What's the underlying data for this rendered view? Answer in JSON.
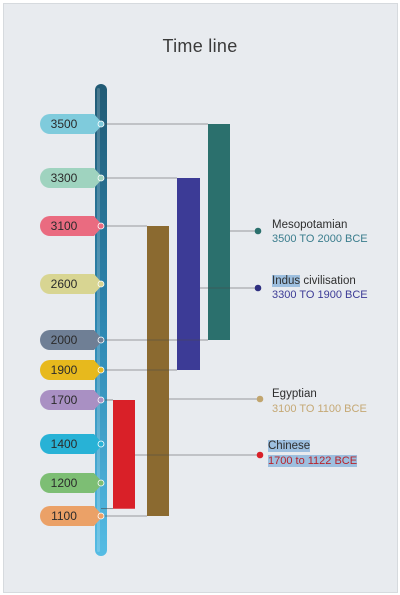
{
  "title": "Time line",
  "years": [
    {
      "label": "3500",
      "color": "#7fcbdc"
    },
    {
      "label": "3300",
      "color": "#9fd3bf"
    },
    {
      "label": "3100",
      "color": "#ea6b80"
    },
    {
      "label": "2600",
      "color": "#d8d592"
    },
    {
      "label": "2000",
      "color": "#6f7f95"
    },
    {
      "label": "1900",
      "color": "#e7b91d"
    },
    {
      "label": "1700",
      "color": "#a990c3"
    },
    {
      "label": "1400",
      "color": "#28b2d6"
    },
    {
      "label": "1200",
      "color": "#7dbe74"
    },
    {
      "label": "1100",
      "color": "#eba167"
    }
  ],
  "chart_data": {
    "type": "gantt",
    "axis_direction": "descending",
    "unit": "BCE",
    "series": [
      {
        "name": "Mesopotamian",
        "range": "3500 TO 2000 BCE",
        "start": 3500,
        "end": 2000,
        "color": "#2b706d",
        "range_color": "#3a7d8d",
        "dot_color": "#2b706d",
        "highlight_name": false,
        "highlight_range": false
      },
      {
        "name": "Indus civilisation",
        "name_highlight": "Indus",
        "name_rest": " civilisation",
        "range": "3300 TO 1900 BCE",
        "start": 3300,
        "end": 1900,
        "color": "#3c3b96",
        "range_color": "#3c3b96",
        "dot_color": "#2e2f80",
        "highlight_name": true,
        "highlight_range": false
      },
      {
        "name": "Egyptian",
        "range": "3100 TO 1100 BCE",
        "start": 3100,
        "end": 1100,
        "color": "#8b6a30",
        "range_color": "#c5a874",
        "dot_color": "#c1a56e",
        "highlight_name": false,
        "highlight_range": false
      },
      {
        "name": "Chinese",
        "range": "1700 to 1122 BCE",
        "start": 1700,
        "end": 1122,
        "color": "#d92028",
        "range_color": "#b8232b",
        "dot_color": "#d92028",
        "highlight_name": true,
        "highlight_range": true
      }
    ]
  }
}
